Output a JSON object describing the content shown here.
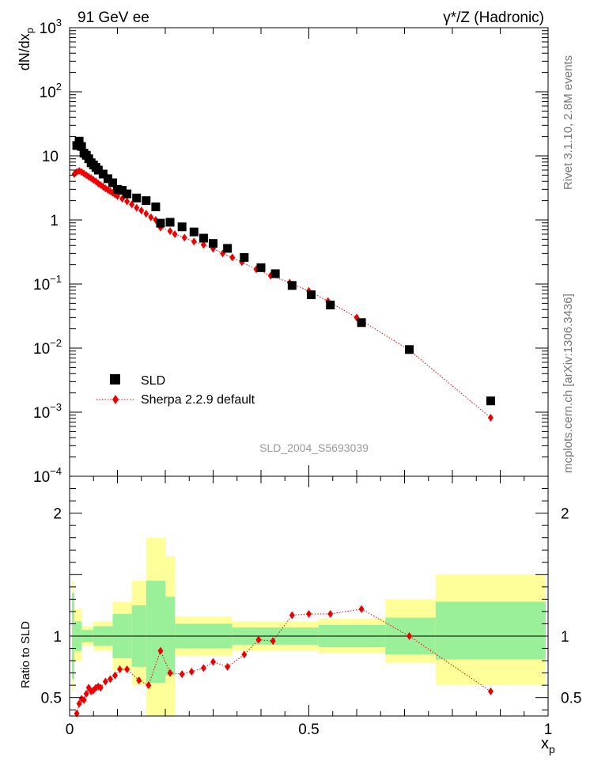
{
  "header": {
    "left": "91 GeV ee",
    "right": "γ*/Z (Hadronic)"
  },
  "side_labels": {
    "upper": "Rivet 3.1.10, 2.8M events",
    "lower": "mcplots.cern.ch [arXiv:1306.3436]"
  },
  "watermark": "SLD_2004_S5693039",
  "colors": {
    "data": "#000000",
    "mc": "#ee0000",
    "band_inner": "#99f099",
    "band_outer": "#ffff99"
  },
  "chart_data": [
    {
      "type": "scatter",
      "ylabel": "dN/dx_p",
      "yscale": "log",
      "ylim": [
        0.0001,
        1000
      ],
      "xlim": [
        0,
        1
      ],
      "y_tick_labels": [
        "10^-4",
        "10^-3",
        "10^-2",
        "10^-1",
        "1",
        "10",
        "10^2",
        "10^3"
      ],
      "legend_position": "bottom-left",
      "series": [
        {
          "name": "SLD",
          "marker": "square",
          "points": [
            [
              0.015,
              14.5
            ],
            [
              0.02,
              17.0
            ],
            [
              0.025,
              14.0
            ],
            [
              0.03,
              11.0
            ],
            [
              0.035,
              10.2
            ],
            [
              0.04,
              9.0
            ],
            [
              0.045,
              7.8
            ],
            [
              0.05,
              7.2
            ],
            [
              0.055,
              6.6
            ],
            [
              0.06,
              6.0
            ],
            [
              0.07,
              5.2
            ],
            [
              0.08,
              4.4
            ],
            [
              0.09,
              3.8
            ],
            [
              0.1,
              3.0
            ],
            [
              0.11,
              2.9
            ],
            [
              0.12,
              2.55
            ],
            [
              0.14,
              2.2
            ],
            [
              0.16,
              2.0
            ],
            [
              0.18,
              1.6
            ],
            [
              0.19,
              0.89
            ],
            [
              0.21,
              0.92
            ],
            [
              0.235,
              0.78
            ],
            [
              0.26,
              0.65
            ],
            [
              0.28,
              0.52
            ],
            [
              0.3,
              0.43
            ],
            [
              0.33,
              0.36
            ],
            [
              0.365,
              0.26
            ],
            [
              0.4,
              0.18
            ],
            [
              0.43,
              0.145
            ],
            [
              0.465,
              0.095
            ],
            [
              0.505,
              0.068
            ],
            [
              0.545,
              0.047
            ],
            [
              0.61,
              0.025
            ],
            [
              0.71,
              0.0095
            ],
            [
              0.88,
              0.0015
            ]
          ]
        },
        {
          "name": "Sherpa 2.2.9 default",
          "marker": "diamond",
          "line": "dotted",
          "points": [
            [
              0.01,
              5.2
            ],
            [
              0.015,
              5.6
            ],
            [
              0.02,
              5.8
            ],
            [
              0.025,
              5.6
            ],
            [
              0.03,
              5.3
            ],
            [
              0.035,
              5.0
            ],
            [
              0.04,
              4.7
            ],
            [
              0.045,
              4.5
            ],
            [
              0.05,
              4.2
            ],
            [
              0.055,
              4.0
            ],
            [
              0.06,
              3.7
            ],
            [
              0.065,
              3.5
            ],
            [
              0.07,
              3.3
            ],
            [
              0.075,
              3.1
            ],
            [
              0.08,
              2.95
            ],
            [
              0.085,
              2.8
            ],
            [
              0.09,
              2.65
            ],
            [
              0.095,
              2.5
            ],
            [
              0.1,
              2.35
            ],
            [
              0.11,
              2.15
            ],
            [
              0.12,
              1.95
            ],
            [
              0.13,
              1.75
            ],
            [
              0.14,
              1.55
            ],
            [
              0.15,
              1.4
            ],
            [
              0.16,
              1.25
            ],
            [
              0.17,
              1.1
            ],
            [
              0.18,
              1.0
            ],
            [
              0.19,
              0.76
            ],
            [
              0.21,
              0.67
            ],
            [
              0.22,
              0.6
            ],
            [
              0.24,
              0.53
            ],
            [
              0.26,
              0.46
            ],
            [
              0.28,
              0.41
            ],
            [
              0.3,
              0.355
            ],
            [
              0.32,
              0.3
            ],
            [
              0.34,
              0.26
            ],
            [
              0.36,
              0.22
            ],
            [
              0.39,
              0.17
            ],
            [
              0.42,
              0.135
            ],
            [
              0.46,
              0.105
            ],
            [
              0.5,
              0.078
            ],
            [
              0.54,
              0.054
            ],
            [
              0.6,
              0.03
            ],
            [
              0.71,
              0.0093
            ],
            [
              0.88,
              0.00082
            ]
          ]
        }
      ]
    },
    {
      "type": "scatter",
      "ylabel": "Ratio to SLD",
      "xlabel": "x_p",
      "xlim": [
        0,
        1
      ],
      "ylim": [
        0.35,
        2.3
      ],
      "x_ticks": [
        0,
        0.5,
        1
      ],
      "y_ticks": [
        0.5,
        1,
        2
      ],
      "reference_line": 1,
      "uncertainty_bands": [
        {
          "x0": 0.005,
          "x1": 0.01,
          "inner": [
            0.65,
            1.35
          ],
          "outer": [
            0.55,
            1.45
          ]
        },
        {
          "x0": 0.01,
          "x1": 0.025,
          "inner": [
            0.88,
            1.12
          ],
          "outer": [
            0.8,
            1.22
          ]
        },
        {
          "x0": 0.025,
          "x1": 0.05,
          "inner": [
            0.95,
            1.05
          ],
          "outer": [
            0.92,
            1.08
          ]
        },
        {
          "x0": 0.05,
          "x1": 0.09,
          "inner": [
            0.92,
            1.08
          ],
          "outer": [
            0.88,
            1.12
          ]
        },
        {
          "x0": 0.09,
          "x1": 0.13,
          "inner": [
            0.82,
            1.18
          ],
          "outer": [
            0.72,
            1.28
          ]
        },
        {
          "x0": 0.13,
          "x1": 0.16,
          "inner": [
            0.75,
            1.25
          ],
          "outer": [
            0.6,
            1.45
          ]
        },
        {
          "x0": 0.16,
          "x1": 0.2,
          "inner": [
            0.62,
            1.45
          ],
          "outer": [
            0.35,
            1.8
          ]
        },
        {
          "x0": 0.2,
          "x1": 0.22,
          "inner": [
            0.68,
            1.32
          ],
          "outer": [
            0.35,
            1.65
          ]
        },
        {
          "x0": 0.22,
          "x1": 0.34,
          "inner": [
            0.9,
            1.1
          ],
          "outer": [
            0.84,
            1.16
          ]
        },
        {
          "x0": 0.34,
          "x1": 0.52,
          "inner": [
            0.93,
            1.07
          ],
          "outer": [
            0.88,
            1.12
          ]
        },
        {
          "x0": 0.52,
          "x1": 0.66,
          "inner": [
            0.91,
            1.09
          ],
          "outer": [
            0.86,
            1.14
          ]
        },
        {
          "x0": 0.66,
          "x1": 0.765,
          "inner": [
            0.85,
            1.15
          ],
          "outer": [
            0.78,
            1.3
          ]
        },
        {
          "x0": 0.765,
          "x1": 0.995,
          "inner": [
            0.81,
            1.28
          ],
          "outer": [
            0.6,
            1.5
          ]
        }
      ],
      "series": [
        {
          "name": "Sherpa 2.2.9 default",
          "marker": "diamond",
          "line": "dotted",
          "points": [
            [
              0.015,
              0.37
            ],
            [
              0.02,
              0.45
            ],
            [
              0.025,
              0.49
            ],
            [
              0.03,
              0.48
            ],
            [
              0.035,
              0.53
            ],
            [
              0.04,
              0.58
            ],
            [
              0.045,
              0.55
            ],
            [
              0.05,
              0.56
            ],
            [
              0.055,
              0.58
            ],
            [
              0.06,
              0.59
            ],
            [
              0.065,
              0.58
            ],
            [
              0.075,
              0.63
            ],
            [
              0.085,
              0.65
            ],
            [
              0.095,
              0.68
            ],
            [
              0.105,
              0.73
            ],
            [
              0.12,
              0.73
            ],
            [
              0.145,
              0.64
            ],
            [
              0.165,
              0.6
            ],
            [
              0.19,
              0.88
            ],
            [
              0.21,
              0.7
            ],
            [
              0.235,
              0.69
            ],
            [
              0.255,
              0.71
            ],
            [
              0.28,
              0.74
            ],
            [
              0.3,
              0.79
            ],
            [
              0.33,
              0.75
            ],
            [
              0.365,
              0.85
            ],
            [
              0.395,
              0.97
            ],
            [
              0.425,
              0.96
            ],
            [
              0.465,
              1.17
            ],
            [
              0.5,
              1.18
            ],
            [
              0.545,
              1.18
            ],
            [
              0.61,
              1.22
            ],
            [
              0.71,
              1.0
            ],
            [
              0.88,
              0.55
            ]
          ]
        }
      ]
    }
  ]
}
